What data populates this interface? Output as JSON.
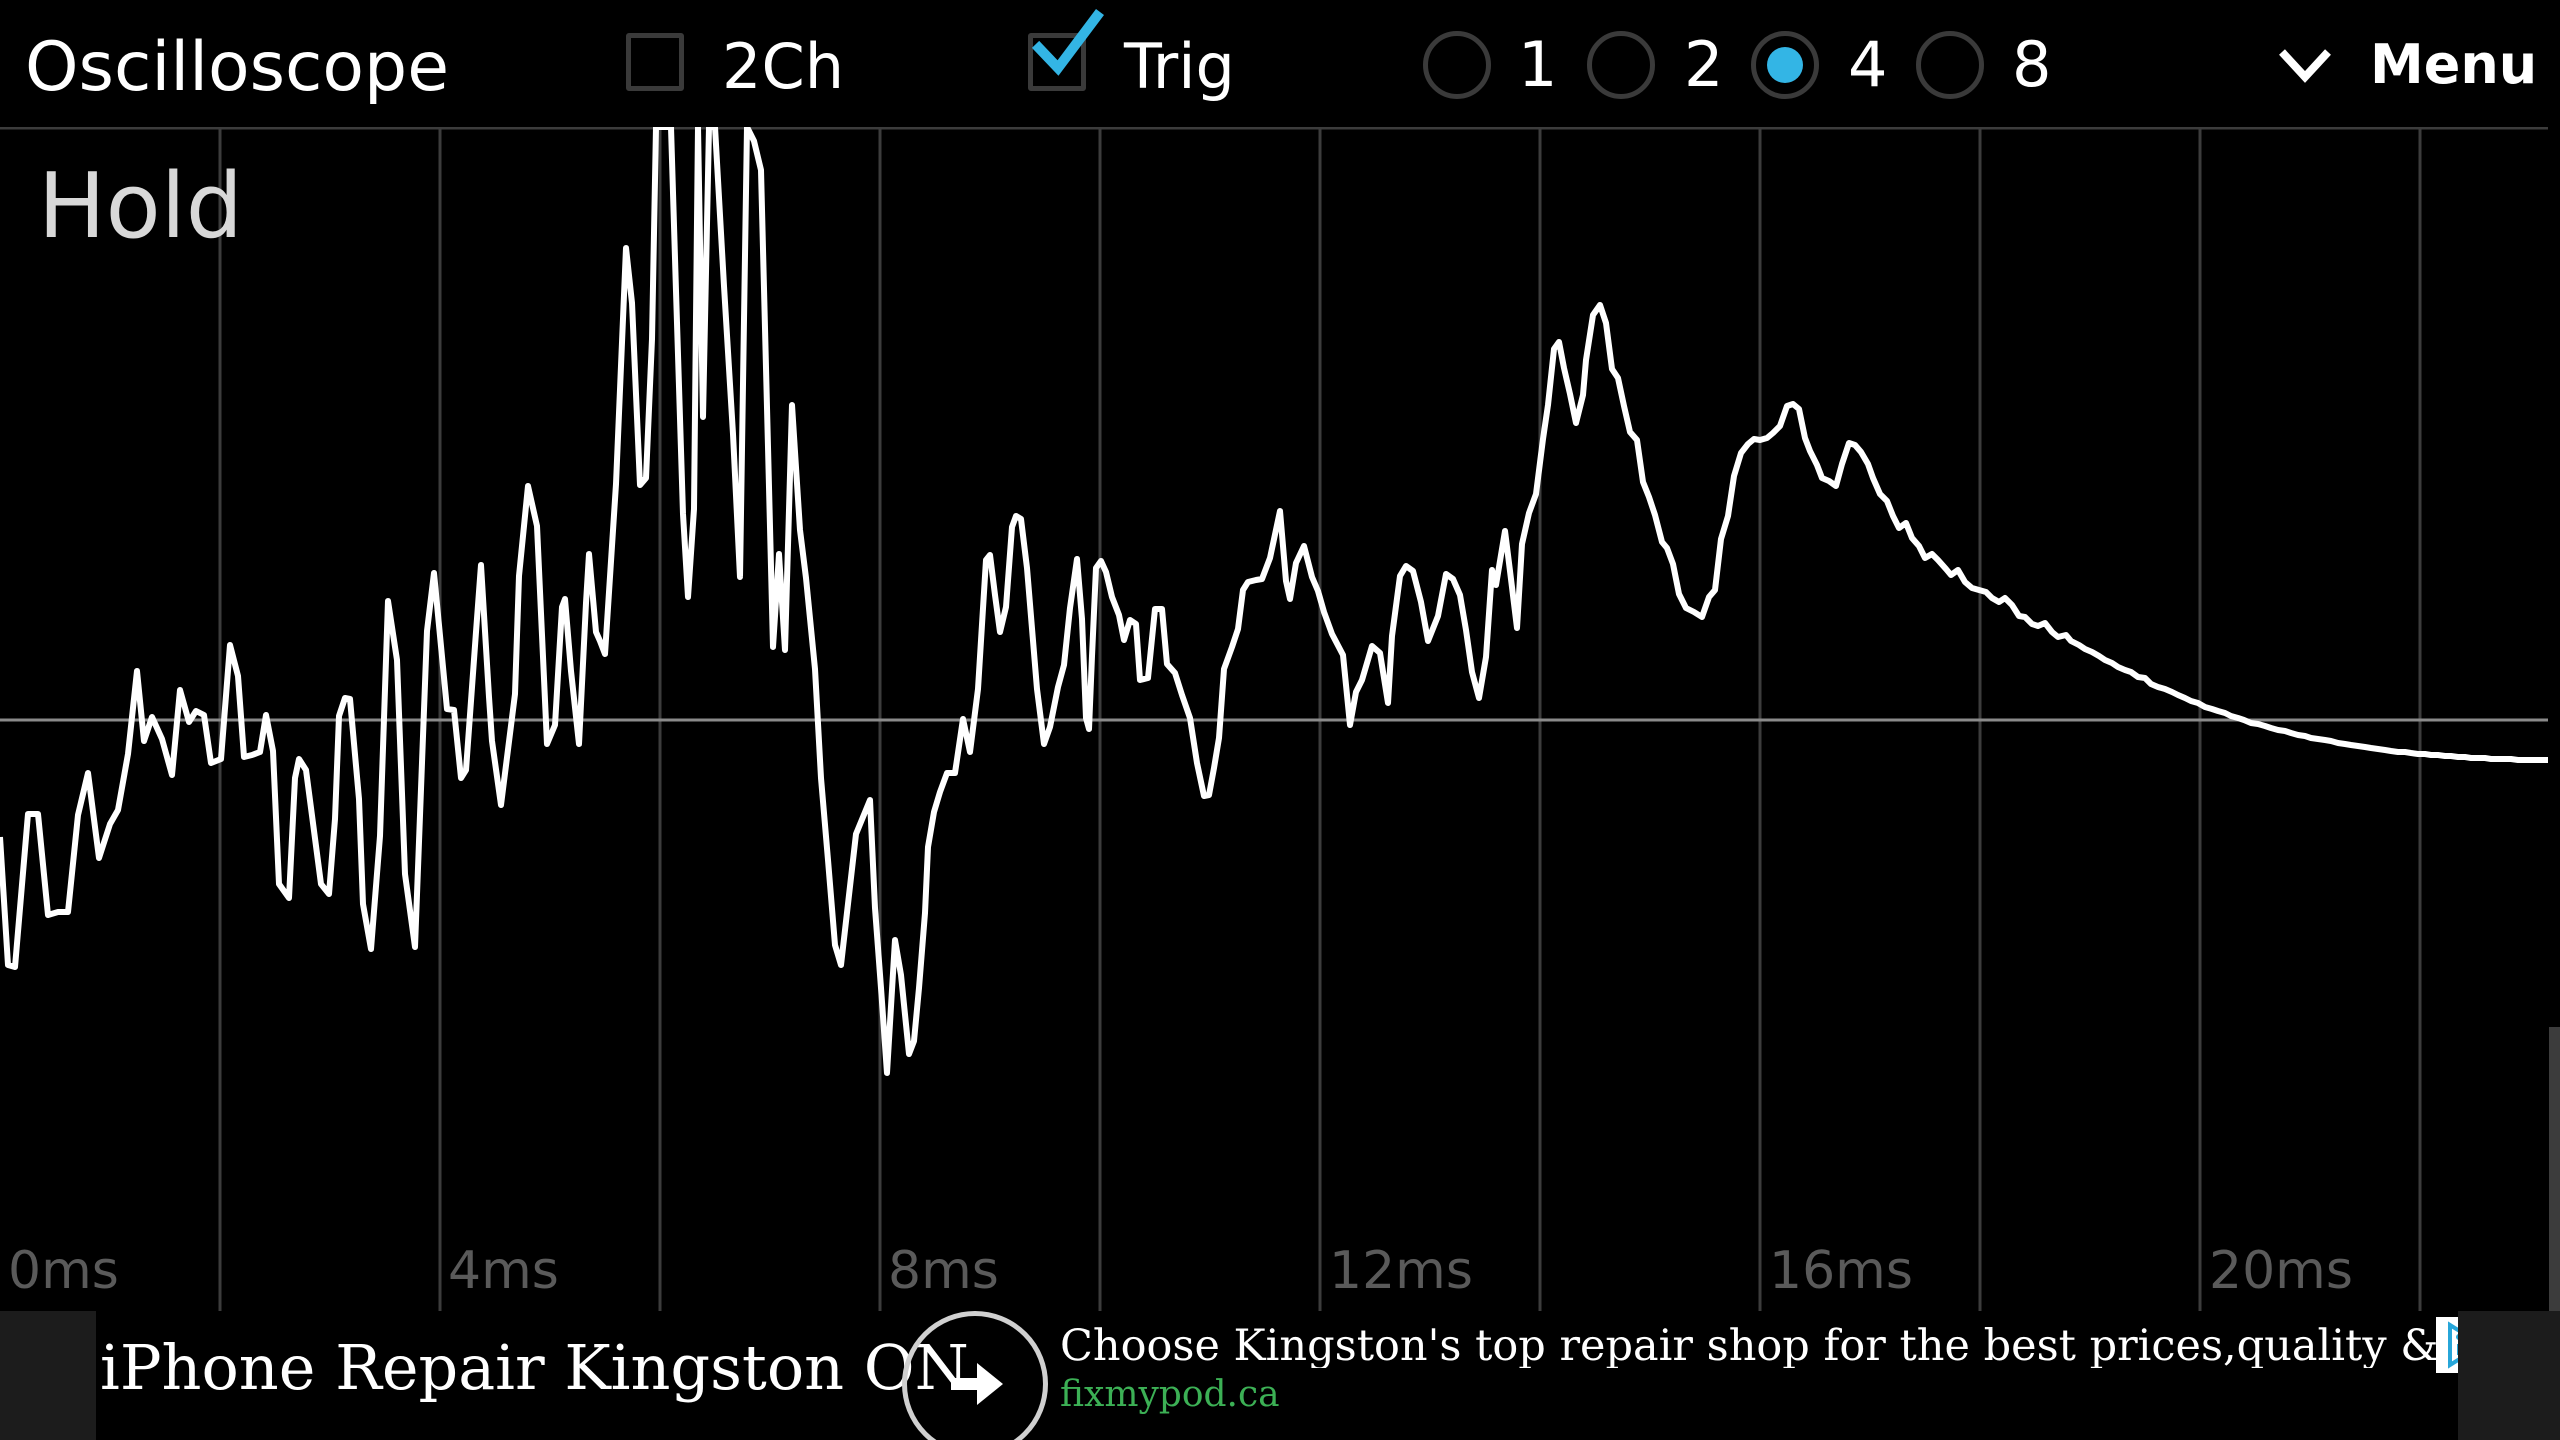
{
  "app": {
    "title": "Oscilloscope"
  },
  "toolbar": {
    "two_channel": {
      "label": "2Ch",
      "checked": false
    },
    "trigger": {
      "label": "Trig",
      "checked": true
    },
    "timebase_options": [
      {
        "label": "1",
        "selected": false
      },
      {
        "label": "2",
        "selected": false
      },
      {
        "label": "4",
        "selected": true
      },
      {
        "label": "8",
        "selected": false
      }
    ],
    "menu_label": "Menu",
    "menu_icon": "chevron-down-icon"
  },
  "scope": {
    "status": "Hold",
    "time_labels": [
      "0ms",
      "4ms",
      "8ms",
      "12ms",
      "16ms",
      "20ms"
    ],
    "grid_divisions": 12,
    "colors": {
      "trace": "#ffffff",
      "grid": "#3c3c3c",
      "center_line": "#8a8a8a",
      "radio_selected": "#33b5e5"
    }
  },
  "ad": {
    "headline": "iPhone Repair Kingston ON",
    "description": "Choose Kingston's top repair shop for the best prices,quality & speed",
    "url": "fixmypod.ca",
    "arrow_icon": "arrow-right-icon",
    "adchoices_icon": "adchoices-icon",
    "close_icon": "close-icon"
  }
}
